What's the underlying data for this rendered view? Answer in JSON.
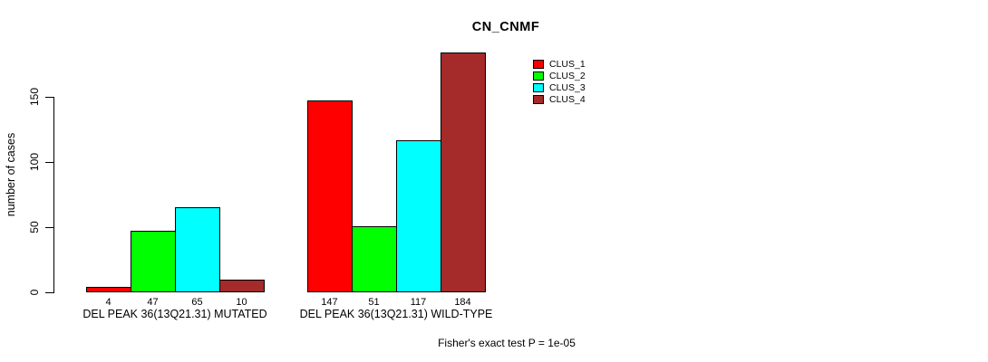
{
  "chart_data": {
    "type": "bar",
    "title": "CN_CNMF",
    "xlabel": "",
    "ylabel": "number of cases",
    "ylim": [
      0,
      150
    ],
    "yticks": [
      0,
      50,
      100,
      150
    ],
    "grid": false,
    "legend_position": "top-right",
    "bar_value_labels": true,
    "categories": [
      "DEL PEAK 36(13Q21.31) MUTATED",
      "DEL PEAK 36(13Q21.31) WILD-TYPE"
    ],
    "series": [
      {
        "name": "CLUS_1",
        "color": "#ff0000",
        "values": [
          4,
          147
        ]
      },
      {
        "name": "CLUS_2",
        "color": "#00ff00",
        "values": [
          47,
          51
        ]
      },
      {
        "name": "CLUS_3",
        "color": "#00ffff",
        "values": [
          65,
          117
        ]
      },
      {
        "name": "CLUS_4",
        "color": "#a52a2a",
        "values": [
          10,
          184
        ]
      }
    ],
    "annotation": "Fisher's exact test P = 1e-05",
    "colors": {
      "text": "#000000",
      "background": "#ffffff",
      "axis": "#000000"
    }
  }
}
